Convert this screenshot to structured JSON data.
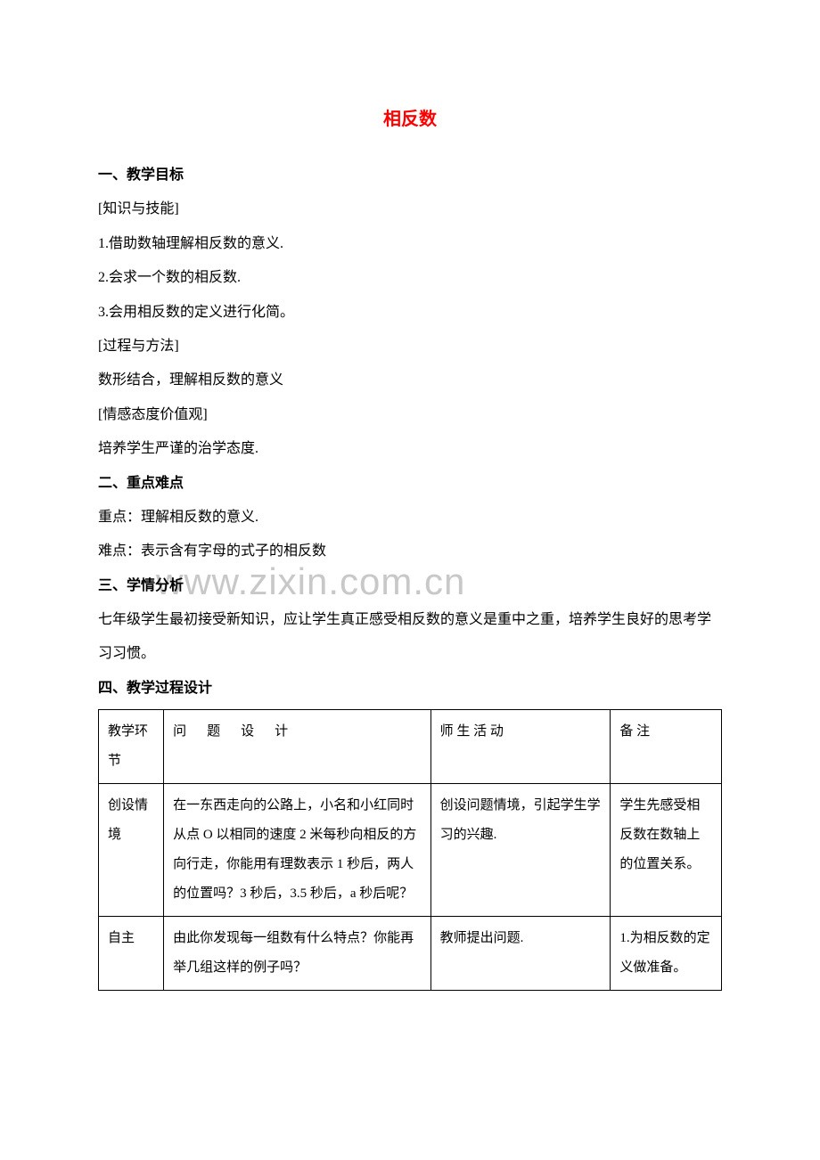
{
  "title": "相反数",
  "watermark": "www.zixin.com.cn",
  "sections": {
    "s1": {
      "heading": "一、教学目标",
      "sub1_label": "[知识与技能]",
      "sub1_item1": "1.借助数轴理解相反数的意义.",
      "sub1_item2": "2.会求一个数的相反数.",
      "sub1_item3": "3.会用相反数的定义进行化简。",
      "sub2_label": "[过程与方法]",
      "sub2_item1": "数形结合，理解相反数的意义",
      "sub3_label": "[情感态度价值观]",
      "sub3_item1": "培养学生严谨的治学态度."
    },
    "s2": {
      "heading": "二、重点难点",
      "line1": "重点：理解相反数的意义.",
      "line2": "难点：表示含有字母的式子的相反数"
    },
    "s3": {
      "heading": "三、学情分析",
      "line1": "七年级学生最初接受新知识，应让学生真正感受相反数的意义是重中之重，培养学生良好的思考学习习惯。"
    },
    "s4": {
      "heading": "四、教学过程设计"
    }
  },
  "table": {
    "header": {
      "c1": "教学环节",
      "c2": "问　题　设　计",
      "c3": "师 生 活 动",
      "c4": "备 注"
    },
    "rows": [
      {
        "c1": "创设情境",
        "c2": "在一东西走向的公路上，小名和小红同时从点 O 以相同的速度 2 米每秒向相反的方向行走，你能用有理数表示 1 秒后，两人的位置吗？3 秒后，3.5 秒后，a 秒后呢？",
        "c3": "创设问题情境，引起学生学习的兴趣.",
        "c4": "学生先感受相反数在数轴上的位置关系。"
      },
      {
        "c1": "自主",
        "c2": "由此你发现每一组数有什么特点？你能再举几组这样的例子吗？",
        "c3": "教师提出问题.",
        "c4": "1.为相反数的定义做准备。"
      }
    ]
  },
  "colors": {
    "title_color": "#ff0000",
    "text_color": "#000000",
    "border_color": "#000000",
    "watermark_color": "#c8c8c8",
    "background": "#ffffff"
  },
  "typography": {
    "body_fontsize": 16,
    "title_fontsize": 20,
    "table_fontsize": 15,
    "line_height": 2.4
  }
}
